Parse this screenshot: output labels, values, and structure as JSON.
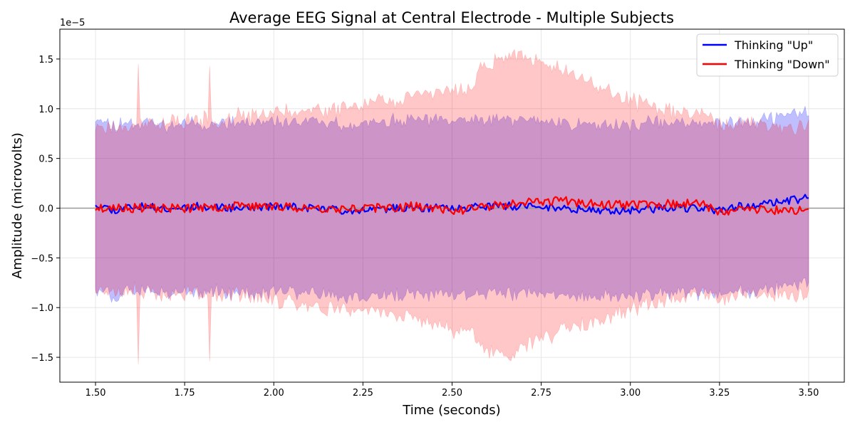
{
  "chart_data": {
    "type": "line",
    "title": "Average EEG Signal at Central Electrode - Multiple Subjects",
    "xlabel": "Time (seconds)",
    "ylabel": "Amplitude (microvolts)",
    "y_offset_label": "1e−5",
    "xlim": [
      1.4,
      3.6
    ],
    "ylim": [
      -1.75,
      1.8
    ],
    "y_scale_factor": "1e-5",
    "x_ticks": [
      1.5,
      1.75,
      2.0,
      2.25,
      2.5,
      2.75,
      3.0,
      3.25,
      3.5
    ],
    "x_tick_labels": [
      "1.50",
      "1.75",
      "2.00",
      "2.25",
      "2.50",
      "2.75",
      "3.00",
      "3.25",
      "3.50"
    ],
    "y_ticks": [
      -1.5,
      -1.0,
      -0.5,
      0.0,
      0.5,
      1.0,
      1.5
    ],
    "y_tick_labels": [
      "−1.5",
      "−1.0",
      "−0.5",
      "0.0",
      "0.5",
      "1.0",
      "1.5"
    ],
    "grid": true,
    "zero_line": true,
    "legend_position": "top-right",
    "x_range": [
      1.5,
      3.5
    ],
    "band_note": "shaded bands = mean ± spread across subjects",
    "series": [
      {
        "name": "Thinking \"Up\"",
        "color": "#0000ff",
        "band_color": "#0000ff",
        "band_opacity": 0.25,
        "mean_keypoints": [
          [
            1.5,
            0.05
          ],
          [
            1.55,
            -0.02
          ],
          [
            1.6,
            0.02
          ],
          [
            1.7,
            0.0
          ],
          [
            1.8,
            0.02
          ],
          [
            1.9,
            0.0
          ],
          [
            2.0,
            0.02
          ],
          [
            2.1,
            0.0
          ],
          [
            2.2,
            -0.02
          ],
          [
            2.35,
            0.0
          ],
          [
            2.5,
            0.0
          ],
          [
            2.6,
            0.02
          ],
          [
            2.7,
            0.02
          ],
          [
            2.8,
            0.0
          ],
          [
            2.9,
            -0.02
          ],
          [
            3.0,
            -0.02
          ],
          [
            3.1,
            0.0
          ],
          [
            3.2,
            0.0
          ],
          [
            3.25,
            -0.03
          ],
          [
            3.3,
            0.02
          ],
          [
            3.4,
            0.05
          ],
          [
            3.45,
            0.08
          ],
          [
            3.5,
            0.1
          ]
        ],
        "band_half_width_keypoints": [
          [
            1.5,
            0.86
          ],
          [
            1.7,
            0.84
          ],
          [
            2.0,
            0.85
          ],
          [
            2.25,
            0.87
          ],
          [
            2.5,
            0.87
          ],
          [
            2.75,
            0.87
          ],
          [
            3.0,
            0.86
          ],
          [
            3.25,
            0.86
          ],
          [
            3.5,
            0.86
          ]
        ],
        "noise": 0.04,
        "band_noise": 0.05,
        "seed": 11
      },
      {
        "name": "Thinking \"Down\"",
        "color": "#ff0000",
        "band_color": "#ff0000",
        "band_opacity": 0.22,
        "mean_keypoints": [
          [
            1.5,
            0.0
          ],
          [
            1.6,
            0.0
          ],
          [
            1.7,
            0.0
          ],
          [
            1.8,
            0.0
          ],
          [
            1.9,
            0.02
          ],
          [
            2.0,
            0.02
          ],
          [
            2.1,
            0.0
          ],
          [
            2.2,
            0.0
          ],
          [
            2.3,
            0.0
          ],
          [
            2.4,
            0.02
          ],
          [
            2.5,
            -0.03
          ],
          [
            2.6,
            0.02
          ],
          [
            2.7,
            0.05
          ],
          [
            2.8,
            0.08
          ],
          [
            2.9,
            0.04
          ],
          [
            3.0,
            0.03
          ],
          [
            3.1,
            0.04
          ],
          [
            3.2,
            0.05
          ],
          [
            3.25,
            -0.05
          ],
          [
            3.3,
            0.0
          ],
          [
            3.4,
            -0.02
          ],
          [
            3.5,
            -0.02
          ]
        ],
        "band_half_width_keypoints": [
          [
            1.5,
            0.82
          ],
          [
            1.7,
            0.86
          ],
          [
            1.9,
            0.9
          ],
          [
            2.0,
            0.94
          ],
          [
            2.1,
            0.98
          ],
          [
            2.2,
            1.02
          ],
          [
            2.3,
            1.06
          ],
          [
            2.4,
            1.12
          ],
          [
            2.5,
            1.2
          ],
          [
            2.56,
            1.22
          ],
          [
            2.57,
            1.38
          ],
          [
            2.62,
            1.45
          ],
          [
            2.66,
            1.52
          ],
          [
            2.72,
            1.44
          ],
          [
            2.8,
            1.32
          ],
          [
            2.9,
            1.18
          ],
          [
            3.0,
            1.05
          ],
          [
            3.1,
            0.96
          ],
          [
            3.2,
            0.9
          ],
          [
            3.3,
            0.86
          ],
          [
            3.5,
            0.84
          ]
        ],
        "spikes": [
          [
            1.62,
            1.45,
            -1.57
          ],
          [
            1.82,
            1.43,
            -1.54
          ]
        ],
        "noise": 0.045,
        "band_noise": 0.06,
        "seed": 23
      }
    ]
  }
}
